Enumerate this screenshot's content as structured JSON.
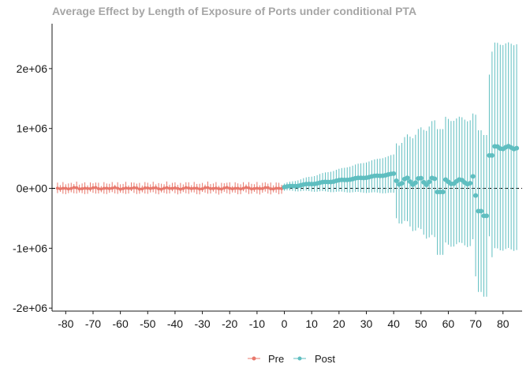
{
  "chart_data": {
    "type": "scatter",
    "title": "Average Effect by Length of Exposure of Ports under conditional PTA",
    "xlabel": "",
    "ylabel": "",
    "xlim": [
      -85,
      87
    ],
    "ylim": [
      -2050000,
      2750000
    ],
    "x_ticks": [
      -80,
      -70,
      -60,
      -50,
      -40,
      -30,
      -20,
      -10,
      0,
      10,
      20,
      30,
      40,
      50,
      60,
      70,
      80
    ],
    "y_ticks": [
      -2000000,
      -1000000,
      0,
      1000000,
      2000000
    ],
    "y_tick_labels": [
      "-2e+06",
      "-1e+06",
      "0e+00",
      "1e+06",
      "2e+06"
    ],
    "reference_line": {
      "y": 0,
      "style": "dashed"
    },
    "legend": {
      "position": "bottom"
    },
    "grid": false,
    "series": [
      {
        "name": "Pre",
        "color": "#E8786C",
        "estimate": [],
        "lower": [],
        "upper": []
      },
      {
        "name": "Post",
        "color": "#5FBEC0",
        "x": [],
        "estimate": [],
        "lower": [],
        "upper": []
      }
    ]
  }
}
